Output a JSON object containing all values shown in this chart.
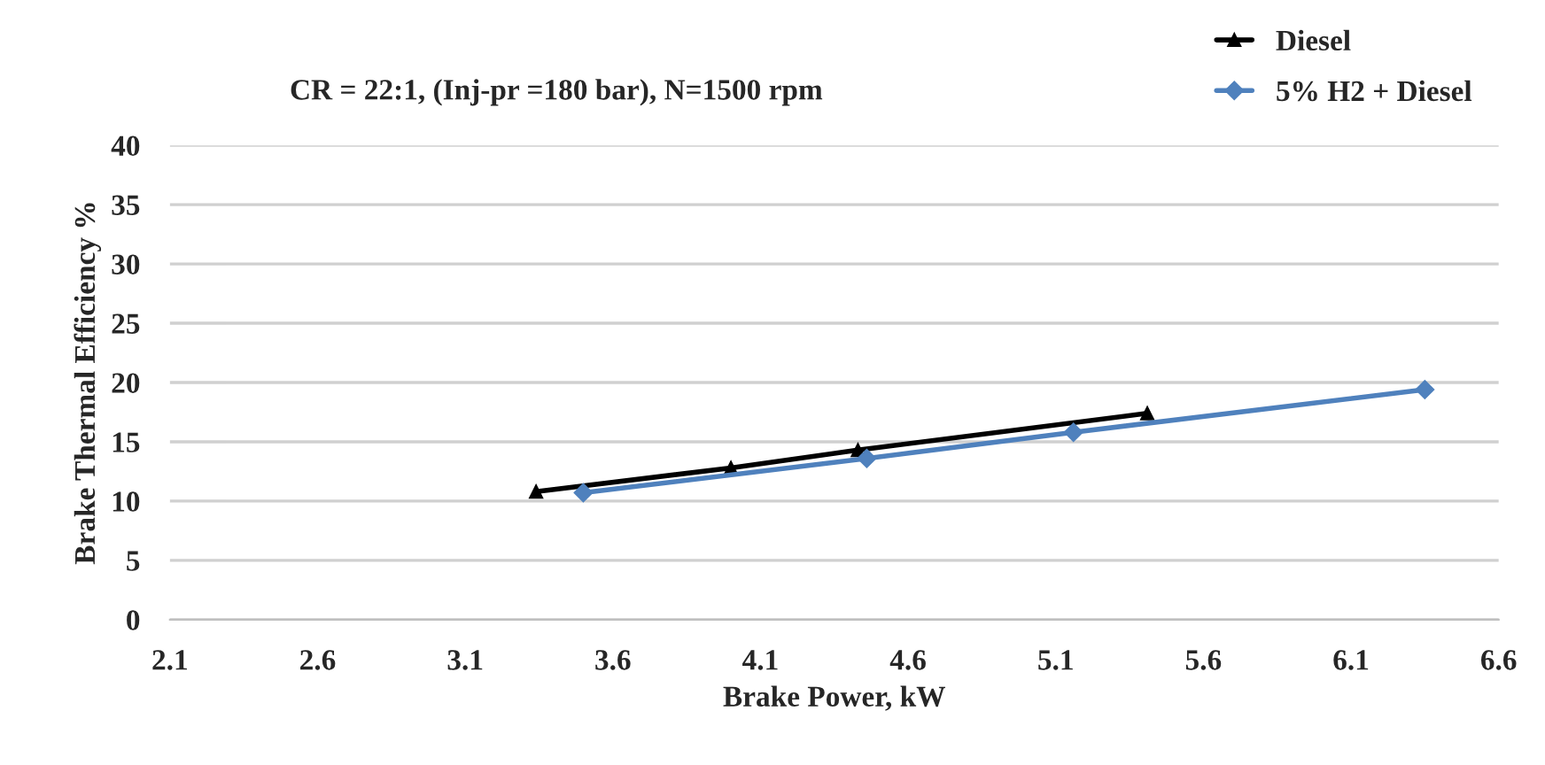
{
  "chart_data": {
    "type": "line",
    "title": "CR = 22:1, (Inj-pr =180 bar), N=1500 rpm",
    "xlabel": "Brake Power, kW",
    "ylabel": "Brake Thermal Efficiency %",
    "series": [
      {
        "name": "Diesel",
        "color": "#000000",
        "marker": "triangle",
        "x": [
          3.34,
          4.0,
          4.43,
          5.41
        ],
        "values": [
          10.8,
          12.8,
          14.3,
          17.4
        ]
      },
      {
        "name": "5% H2 + Diesel",
        "color": "#4f81bd",
        "marker": "diamond",
        "x": [
          3.5,
          4.46,
          5.16,
          6.35
        ],
        "values": [
          10.7,
          13.6,
          15.8,
          19.4
        ]
      }
    ],
    "xlim": [
      2.1,
      6.6
    ],
    "xticks": [
      2.1,
      2.6,
      3.1,
      3.6,
      4.1,
      4.6,
      5.1,
      5.6,
      6.1,
      6.6
    ],
    "ylim": [
      0,
      40
    ],
    "yticks": [
      0,
      5,
      10,
      15,
      20,
      25,
      30,
      35,
      40
    ],
    "grid": "y",
    "legend": "top right"
  }
}
